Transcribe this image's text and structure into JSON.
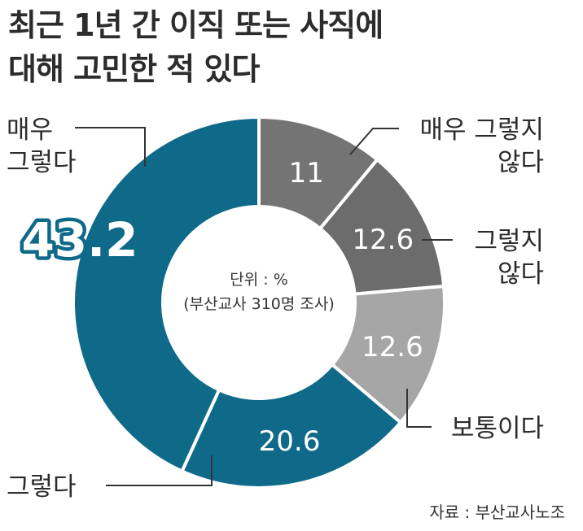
{
  "title_lines": [
    "최근 1년 간 이직 또는 사직에",
    "대해 고민한 적 있다"
  ],
  "unit_lines": [
    "단위 : %",
    "(부산교사 310명 조사)"
  ],
  "source": "자료 : 부산교사노조",
  "chart_data": {
    "type": "pie",
    "donut": true,
    "title": "최근 1년 간 이직 또는 사직에 대해 고민한 적 있다",
    "unit": "%",
    "slices": [
      {
        "label": "매우 그렇지 않다",
        "label_lines": [
          "매우 그렇지",
          "않다"
        ],
        "value": 11,
        "value_text": "11",
        "color": "#747474"
      },
      {
        "label": "그렇지 않다",
        "label_lines": [
          "그렇지",
          "않다"
        ],
        "value": 12.6,
        "value_text": "12.6",
        "color": "#6c6c6c"
      },
      {
        "label": "보통이다",
        "label_lines": [
          "보통이다"
        ],
        "value": 12.6,
        "value_text": "12.6",
        "color": "#a6a6a6"
      },
      {
        "label": "그렇다",
        "label_lines": [
          "그렇다"
        ],
        "value": 20.6,
        "value_text": "20.6",
        "color": "#0f6a8a"
      },
      {
        "label": "매우 그렇다",
        "label_lines": [
          "매우",
          "그렇다"
        ],
        "value": 43.2,
        "value_text": "43.2",
        "color": "#0f6a8a"
      }
    ],
    "highlight_color": "#0f6a8a"
  }
}
